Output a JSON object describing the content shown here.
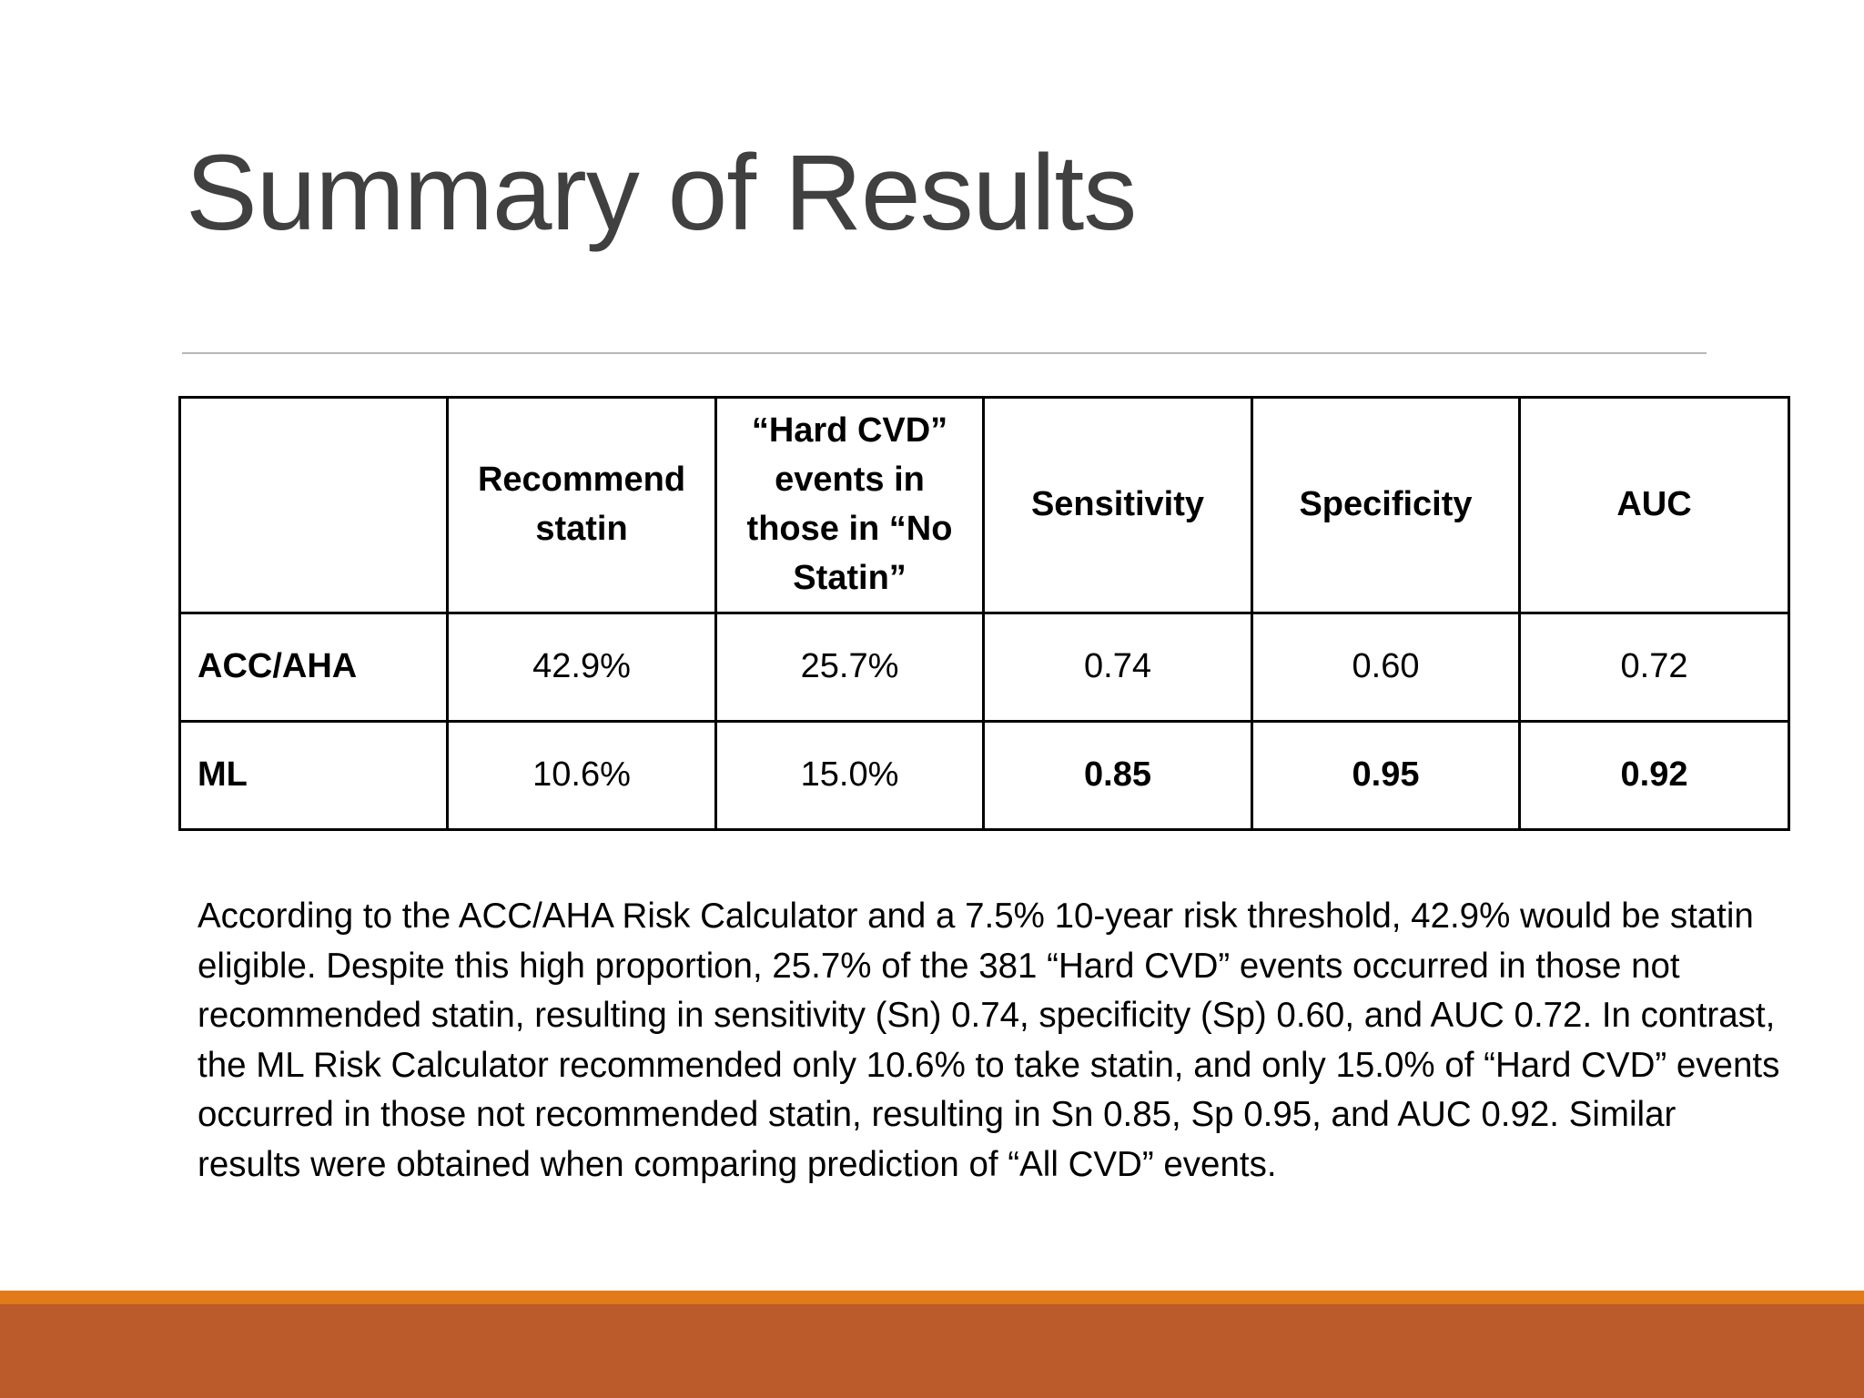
{
  "slide": {
    "title": "Summary of Results",
    "table": {
      "headers": [
        "",
        "Recommend statin",
        "“Hard CVD” events in those in “No Statin”",
        "Sensitivity",
        "Specificity",
        "AUC"
      ],
      "rows": [
        {
          "label": "ACC/AHA",
          "cells": [
            "42.9%",
            "25.7%",
            "0.74",
            "0.60",
            "0.72"
          ]
        },
        {
          "label": "ML",
          "cells": [
            "10.6%",
            "15.0%",
            "0.85",
            "0.95",
            "0.92"
          ]
        }
      ]
    },
    "paragraph": "According to the ACC/AHA Risk Calculator and a 7.5% 10-year risk threshold, 42.9% would be statin eligible. Despite this high proportion, 25.7% of the 381 “Hard CVD” events occurred in those not recommended statin, resulting in sensitivity (Sn) 0.74, specificity (Sp) 0.60, and AUC 0.72. In contrast, the ML Risk Calculator recommended only 10.6% to take statin, and only 15.0% of “Hard CVD” events occurred in those not recommended statin, resulting in Sn 0.85, Sp 0.95, and AUC 0.92. Similar results were obtained when comparing prediction of “All CVD” events."
  },
  "colors": {
    "title": "#404040",
    "divider": "#b7b7b7",
    "footer_accent": "#e07a1b",
    "footer_band": "#bb5a2a"
  }
}
